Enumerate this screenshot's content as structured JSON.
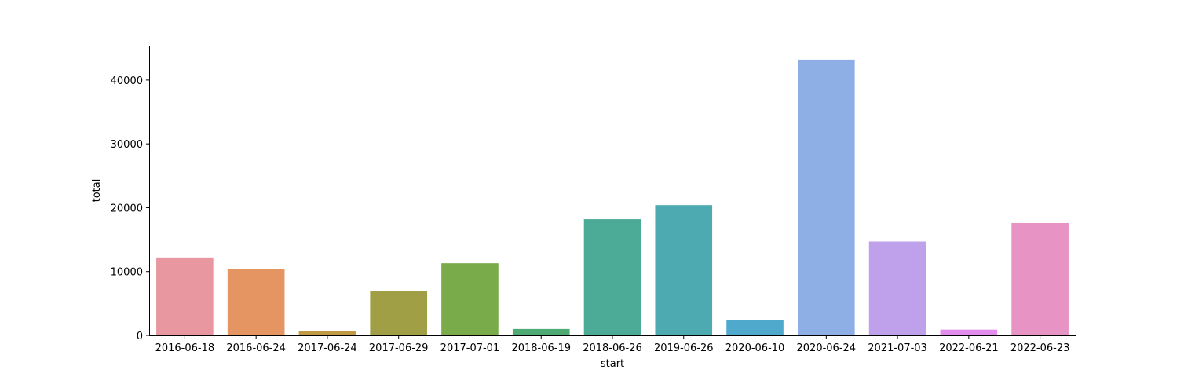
{
  "chart_data": {
    "type": "bar",
    "title": "",
    "xlabel": "start",
    "ylabel": "total",
    "categories": [
      "2016-06-18",
      "2016-06-24",
      "2017-06-24",
      "2017-06-29",
      "2017-07-01",
      "2018-06-19",
      "2018-06-26",
      "2019-06-26",
      "2020-06-10",
      "2020-06-24",
      "2021-07-03",
      "2022-06-21",
      "2022-06-23"
    ],
    "values": [
      12200,
      10400,
      650,
      7000,
      11300,
      1000,
      18200,
      20400,
      2400,
      43200,
      14700,
      900,
      17600
    ],
    "ylim": [
      0,
      45400
    ],
    "yticks": [
      0,
      10000,
      20000,
      30000,
      40000
    ],
    "colors": [
      "#e8969f",
      "#e49562",
      "#c09a45",
      "#a19f46",
      "#7aab4b",
      "#4daa72",
      "#4cab96",
      "#4daab0",
      "#4fa9cd",
      "#8eaee6",
      "#bfa0ea",
      "#e28ded",
      "#e793c4"
    ],
    "grid": false,
    "legend": "none"
  }
}
